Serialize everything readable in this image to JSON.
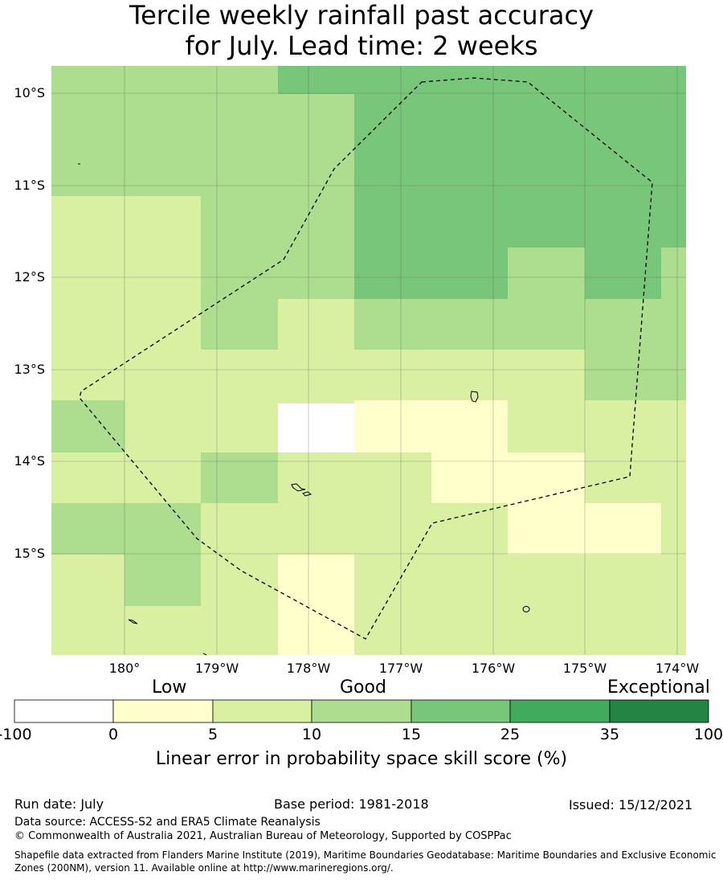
{
  "title": {
    "line1": "Tercile weekly rainfall past accuracy",
    "line2": "for July. Lead time: 2 weeks"
  },
  "map": {
    "lat_labels": [
      "10°S",
      "11°S",
      "12°S",
      "13°S",
      "14°S",
      "15°S"
    ],
    "lon_labels": [
      "180°",
      "179°W",
      "178°W",
      "177°W",
      "176°W",
      "175°W",
      "174°W"
    ],
    "grid": true
  },
  "legend": {
    "category_labels": [
      "Low",
      "Good",
      "Exceptional"
    ],
    "ticks": [
      "-100",
      "0",
      "5",
      "10",
      "15",
      "25",
      "35",
      "100"
    ],
    "colors": [
      "#ffffff",
      "#ffffcc",
      "#d9f0a3",
      "#addd8e",
      "#78c679",
      "#41ab5d",
      "#238443"
    ],
    "axis_label": "Linear error in probability space skill score (%)"
  },
  "footer": {
    "run_date": "Run date: July",
    "base_period": "Base period: 1981-2018",
    "issued": "Issued: 15/12/2021",
    "data_source": "Data source: ACCESS-S2 and ERA5 Climate Reanalysis",
    "copyright": "© Commonwealth of Australia 2021, Australian Bureau of Meteorology, Supported by COSPPac",
    "shapefile_note": "Shapefile data extracted from Flanders Marine Institute (2019), Maritime Boundaries Geodatabase: Maritime Boundaries and Exclusive Economic Zones (200NM), version 11. Available online at http://www.marineregions.org/."
  }
}
